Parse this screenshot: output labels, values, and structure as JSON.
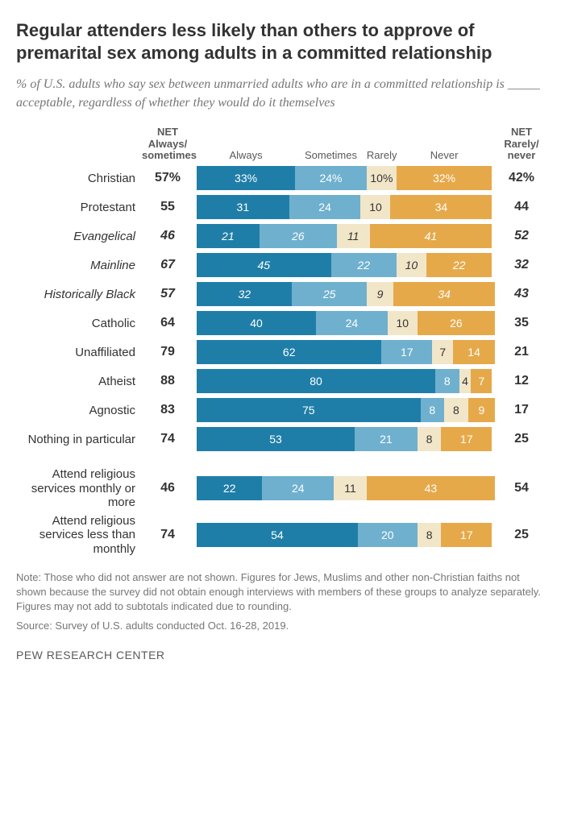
{
  "title": "Regular attenders less likely than others to approve of premarital sex among adults in a committed relationship",
  "subtitle_pre": "% of U.S. adults who say sex between unmarried adults who are in a committed relationship is ",
  "subtitle_blank": "_____",
  "subtitle_post": " acceptable, regardless of whether they would do it themselves",
  "header": {
    "net_left_l1": "NET Always/",
    "net_left_l2": "sometimes",
    "always": "Always",
    "sometimes": "Sometimes",
    "rarely": "Rarely",
    "never": "Never",
    "net_right_l1": "NET",
    "net_right_l2": "Rarely/",
    "net_right_l3": "never"
  },
  "colors": {
    "always": "#1f7ea8",
    "sometimes": "#6fb0ce",
    "rarely": "#f2e6c9",
    "never": "#e6a94a"
  },
  "groups": [
    {
      "rows": [
        {
          "label": "Christian",
          "indent": 0,
          "italic": false,
          "net_l": "57%",
          "always": 33,
          "always_s": "%",
          "sometimes": 24,
          "sometimes_s": "%",
          "rarely": 10,
          "rarely_s": "%",
          "never": 32,
          "never_s": "%",
          "net_r": "42%"
        },
        {
          "label": "Protestant",
          "indent": 1,
          "italic": false,
          "net_l": "55",
          "always": 31,
          "always_s": "",
          "sometimes": 24,
          "sometimes_s": "",
          "rarely": 10,
          "rarely_s": "",
          "never": 34,
          "never_s": "",
          "net_r": "44"
        },
        {
          "label": "Evangelical",
          "indent": 2,
          "italic": true,
          "net_l": "46",
          "always": 21,
          "always_s": "",
          "sometimes": 26,
          "sometimes_s": "",
          "rarely": 11,
          "rarely_s": "",
          "never": 41,
          "never_s": "",
          "net_r": "52"
        },
        {
          "label": "Mainline",
          "indent": 2,
          "italic": true,
          "net_l": "67",
          "always": 45,
          "always_s": "",
          "sometimes": 22,
          "sometimes_s": "",
          "rarely": 10,
          "rarely_s": "",
          "never": 22,
          "never_s": "",
          "net_r": "32"
        },
        {
          "label": "Historically Black",
          "indent": 2,
          "italic": true,
          "net_l": "57",
          "always": 32,
          "always_s": "",
          "sometimes": 25,
          "sometimes_s": "",
          "rarely": 9,
          "rarely_s": "",
          "never": 34,
          "never_s": "",
          "net_r": "43"
        },
        {
          "label": "Catholic",
          "indent": 1,
          "italic": false,
          "net_l": "64",
          "always": 40,
          "always_s": "",
          "sometimes": 24,
          "sometimes_s": "",
          "rarely": 10,
          "rarely_s": "",
          "never": 26,
          "never_s": "",
          "net_r": "35"
        },
        {
          "label": "Unaffiliated",
          "indent": 0,
          "italic": false,
          "net_l": "79",
          "always": 62,
          "always_s": "",
          "sometimes": 17,
          "sometimes_s": "",
          "rarely": 7,
          "rarely_s": "",
          "never": 14,
          "never_s": "",
          "net_r": "21"
        },
        {
          "label": "Atheist",
          "indent": 1,
          "italic": false,
          "net_l": "88",
          "always": 80,
          "always_s": "",
          "sometimes": 8,
          "sometimes_s": "",
          "rarely": 4,
          "rarely_s": "",
          "never": 7,
          "never_s": "",
          "net_r": "12"
        },
        {
          "label": "Agnostic",
          "indent": 1,
          "italic": false,
          "net_l": "83",
          "always": 75,
          "always_s": "",
          "sometimes": 8,
          "sometimes_s": "",
          "rarely": 8,
          "rarely_s": "",
          "never": 9,
          "never_s": "",
          "net_r": "17"
        },
        {
          "label": "Nothing in particular",
          "indent": 1,
          "italic": false,
          "net_l": "74",
          "always": 53,
          "always_s": "",
          "sometimes": 21,
          "sometimes_s": "",
          "rarely": 8,
          "rarely_s": "",
          "never": 17,
          "never_s": "",
          "net_r": "25"
        }
      ]
    },
    {
      "rows": [
        {
          "label": "Attend religious services monthly or more",
          "indent": 0,
          "italic": false,
          "net_l": "46",
          "always": 22,
          "always_s": "",
          "sometimes": 24,
          "sometimes_s": "",
          "rarely": 11,
          "rarely_s": "",
          "never": 43,
          "never_s": "",
          "net_r": "54"
        },
        {
          "label": "Attend religious services less than monthly",
          "indent": 0,
          "italic": false,
          "net_l": "74",
          "always": 54,
          "always_s": "",
          "sometimes": 20,
          "sometimes_s": "",
          "rarely": 8,
          "rarely_s": "",
          "never": 17,
          "never_s": "",
          "net_r": "25"
        }
      ]
    }
  ],
  "note": "Note: Those who did not answer are not shown. Figures for Jews, Muslims and other non-Christian faiths not shown because the survey did not obtain enough interviews with members of these groups to analyze separately. Figures may not add to subtotals indicated due to rounding.",
  "source": "Source: Survey of U.S. adults conducted Oct. 16-28, 2019.",
  "footer": "PEW RESEARCH CENTER",
  "scale": 100
}
